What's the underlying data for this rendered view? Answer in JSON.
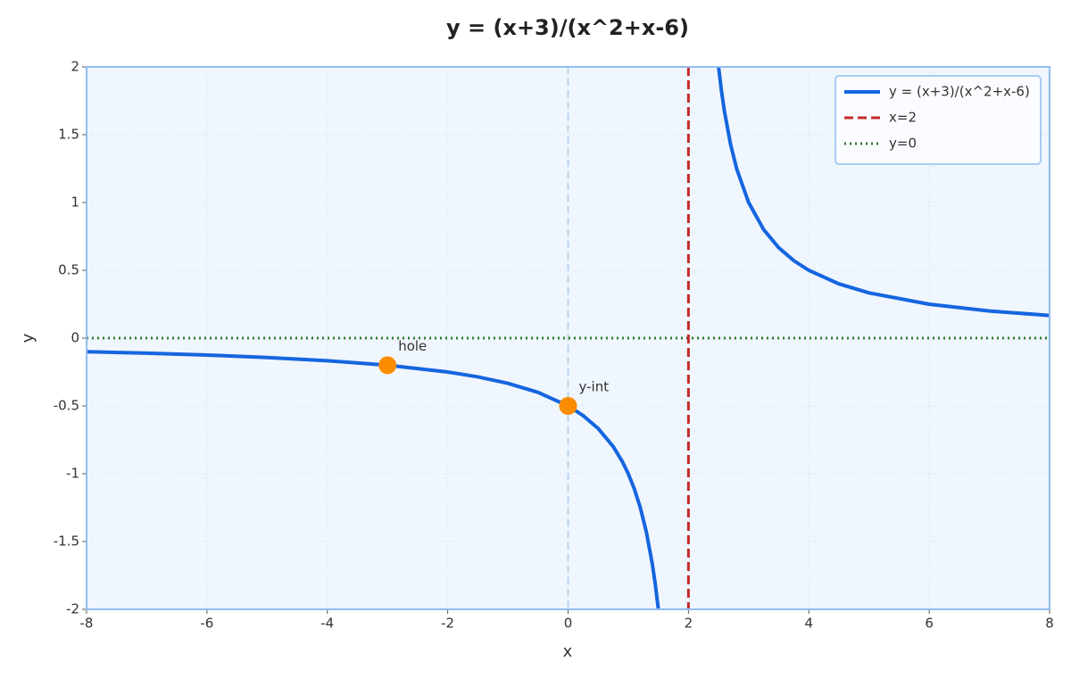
{
  "chart_data": {
    "type": "line",
    "title": "y = (x+3)/(x^2+x-6)",
    "x_label": "x",
    "y_label": "y",
    "xlim": [
      -8,
      8
    ],
    "ylim": [
      -2,
      2
    ],
    "xticks": [
      -8,
      -6,
      -4,
      -2,
      0,
      2,
      4,
      6,
      8
    ],
    "yticks": [
      -2,
      -1.5,
      -1,
      -0.5,
      0,
      0.5,
      1,
      1.5,
      2
    ],
    "grid": true,
    "legend": "upper right",
    "series": [
      {
        "name": "y = (x+3)/(x^2+x-6)",
        "color": "#1565e0",
        "x": [
          -8,
          -7,
          -6,
          -5,
          -4,
          -3,
          -2,
          -1.5,
          -1,
          -0.5,
          0,
          0.25,
          0.5,
          0.75,
          0.9,
          1,
          1.1,
          1.2,
          1.3,
          1.4,
          1.45,
          1.5,
          null,
          2.5,
          2.55,
          2.6,
          2.7,
          2.8,
          3,
          3.25,
          3.5,
          3.75,
          4,
          4.5,
          5,
          6,
          7,
          8
        ],
        "values": [
          -0.1,
          -0.1111,
          -0.125,
          -0.1429,
          -0.1667,
          -0.2,
          -0.25,
          -0.2857,
          -0.3333,
          -0.4,
          -0.5,
          -0.5714,
          -0.6667,
          -0.8,
          -0.9091,
          -1,
          -1.1111,
          -1.25,
          -1.4286,
          -1.6667,
          -1.8182,
          -2,
          null,
          2,
          1.8182,
          1.6667,
          1.4286,
          1.25,
          1,
          0.8,
          0.6667,
          0.5714,
          0.5,
          0.4,
          0.3333,
          0.25,
          0.2,
          0.1667
        ]
      }
    ],
    "vlines": [
      {
        "name": "x=2",
        "x": 2,
        "color": "#c62828"
      }
    ],
    "hlines": [
      {
        "name": "y=0",
        "y": 0,
        "color": "#2e7d32"
      }
    ],
    "points": [
      {
        "label": "hole",
        "x": -3,
        "y": -0.2,
        "color": "#fb8c00"
      },
      {
        "label": "y-int",
        "x": 0,
        "y": -0.5,
        "color": "#fb8c00"
      }
    ]
  }
}
